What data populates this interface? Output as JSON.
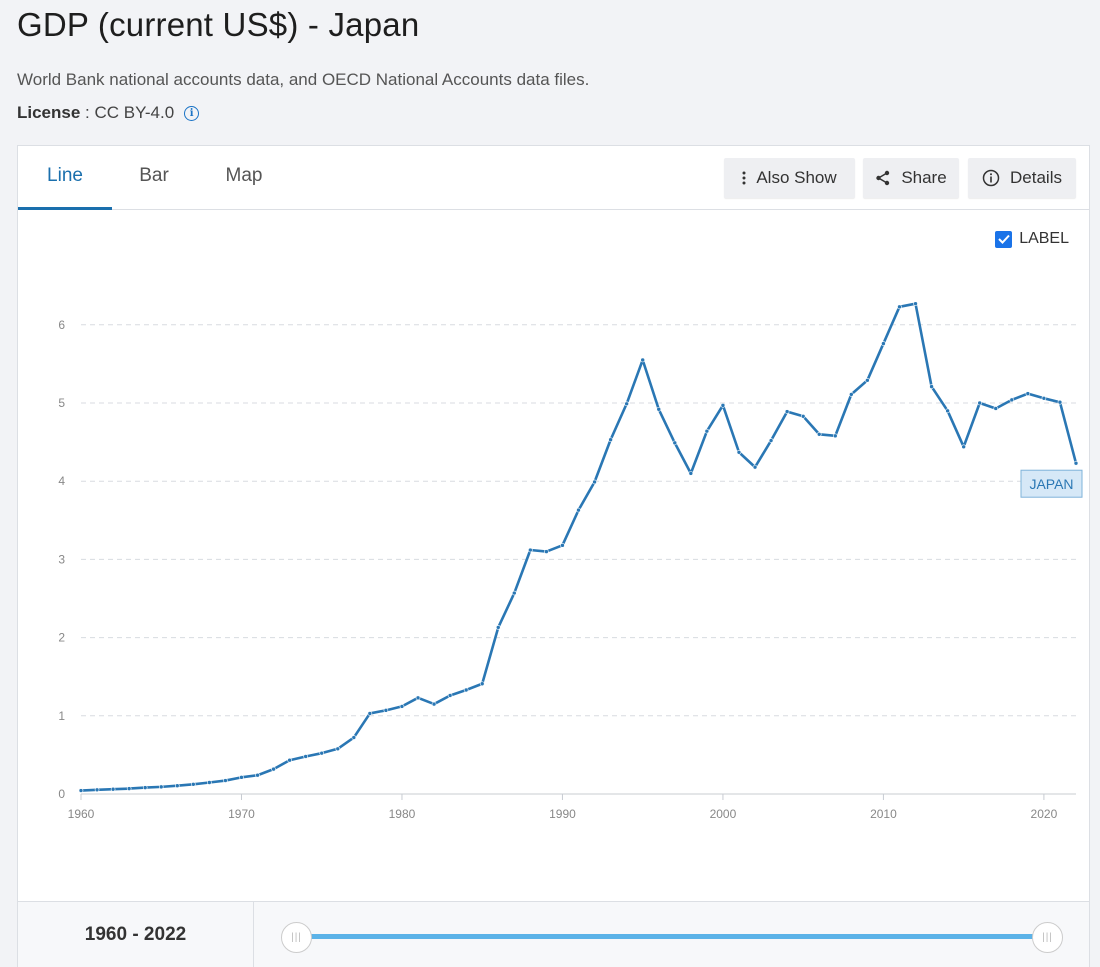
{
  "header": {
    "title": "GDP (current US$) - Japan",
    "source": "World Bank national accounts data, and OECD National Accounts data files.",
    "license_label": "License",
    "license_value": " : CC BY-4.0"
  },
  "tabs": [
    {
      "label": "Line",
      "active": true
    },
    {
      "label": "Bar",
      "active": false
    },
    {
      "label": "Map",
      "active": false
    }
  ],
  "toolbar": {
    "also_show": "Also Show",
    "share": "Share",
    "details": "Details"
  },
  "label_toggle": {
    "label": "LABEL",
    "checked": true
  },
  "range": {
    "label": "1960 - 2022"
  },
  "colors": {
    "line": "#2a77b4",
    "accent": "#1a6fad",
    "slider": "#5cb3e8"
  },
  "chart_data": {
    "type": "line",
    "series": [
      {
        "name": "JAPAN",
        "x": [
          1960,
          1961,
          1962,
          1963,
          1964,
          1965,
          1966,
          1967,
          1968,
          1969,
          1970,
          1971,
          1972,
          1973,
          1974,
          1975,
          1976,
          1977,
          1978,
          1979,
          1980,
          1981,
          1982,
          1983,
          1984,
          1985,
          1986,
          1987,
          1988,
          1989,
          1990,
          1991,
          1992,
          1993,
          1994,
          1995,
          1996,
          1997,
          1998,
          1999,
          2000,
          2001,
          2002,
          2003,
          2004,
          2005,
          2006,
          2007,
          2008,
          2009,
          2010,
          2011,
          2012,
          2013,
          2014,
          2015,
          2016,
          2017,
          2018,
          2019,
          2020,
          2021,
          2022
        ],
        "values": [
          0.044,
          0.054,
          0.061,
          0.069,
          0.082,
          0.091,
          0.106,
          0.124,
          0.147,
          0.172,
          0.213,
          0.24,
          0.318,
          0.432,
          0.48,
          0.522,
          0.578,
          0.722,
          1.03,
          1.07,
          1.12,
          1.23,
          1.15,
          1.26,
          1.33,
          1.41,
          2.13,
          2.57,
          3.12,
          3.1,
          3.18,
          3.63,
          3.99,
          4.53,
          4.99,
          5.55,
          4.92,
          4.49,
          4.1,
          4.64,
          4.97,
          4.37,
          4.18,
          4.52,
          4.89,
          4.83,
          4.6,
          4.58,
          5.11,
          5.29,
          5.76,
          6.23,
          6.27,
          5.21,
          4.9,
          4.44,
          5.0,
          4.93,
          5.04,
          5.12,
          5.06,
          5.01,
          4.23
        ]
      }
    ],
    "x_ticks": [
      "1960",
      "1970",
      "1980",
      "1990",
      "2000",
      "2010",
      "2020"
    ],
    "y_ticks": [
      "0",
      "1",
      "2",
      "3",
      "4",
      "5",
      "6"
    ],
    "xlim": [
      1960,
      2022
    ],
    "ylim": [
      0,
      6.3
    ],
    "grid": true,
    "end_label": "JAPAN"
  }
}
